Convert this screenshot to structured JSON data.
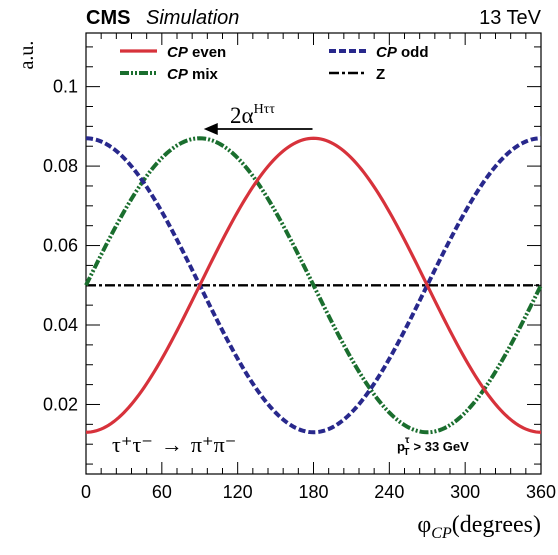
{
  "header": {
    "experiment": "CMS",
    "mode": "Simulation",
    "energy": "13 TeV"
  },
  "annotations": {
    "process_lhs": "τ⁺τ⁻",
    "process_arrow": "→",
    "process_rhs": "π⁺π⁻",
    "pt_cut_lhs": "p",
    "pt_cut_sub": "T",
    "pt_cut_sup": "τ",
    "pt_cut_rhs": "> 33 GeV",
    "shift_base": "2α",
    "shift_sup": "Hττ"
  },
  "colors": {
    "cp_even": "#d7323b",
    "cp_odd": "#28288c",
    "cp_mix": "#1a6e2e",
    "z": "#000000"
  },
  "chart_data": {
    "type": "line",
    "xlabel": "φ",
    "xlabel_sub": "CP",
    "xlabel_unit": "(degrees)",
    "ylabel": "a.u.",
    "xlim": [
      0,
      360
    ],
    "ylim": [
      0.0025,
      0.1135
    ],
    "xticks": [
      0,
      60,
      120,
      180,
      240,
      300,
      360
    ],
    "yticks": [
      0.02,
      0.04,
      0.06,
      0.08,
      0.1
    ],
    "ytick_labels": [
      "0.02",
      "0.04",
      "0.06",
      "0.08",
      "0.1"
    ],
    "grid": false,
    "legend_position": "top",
    "series": [
      {
        "name": "CP even",
        "prefix": "CP",
        "suffix": " even",
        "mean": 0.05,
        "amplitude": 0.037,
        "phase_deg": 180,
        "style": "solid"
      },
      {
        "name": "CP odd",
        "prefix": "CP",
        "suffix": " odd",
        "mean": 0.05,
        "amplitude": 0.037,
        "phase_deg": 0,
        "style": "dashed"
      },
      {
        "name": "CP mix",
        "prefix": "CP",
        "suffix": " mix",
        "mean": 0.05,
        "amplitude": 0.037,
        "phase_deg": 90,
        "style": "dashdotdot"
      },
      {
        "name": "Z",
        "prefix": "",
        "suffix": "Z",
        "mean": 0.05,
        "amplitude": 0.0,
        "phase_deg": 0,
        "style": "dashdot"
      }
    ],
    "shift_arrow": {
      "x_from": 180,
      "x_to": 90,
      "y": 0.0875
    }
  }
}
